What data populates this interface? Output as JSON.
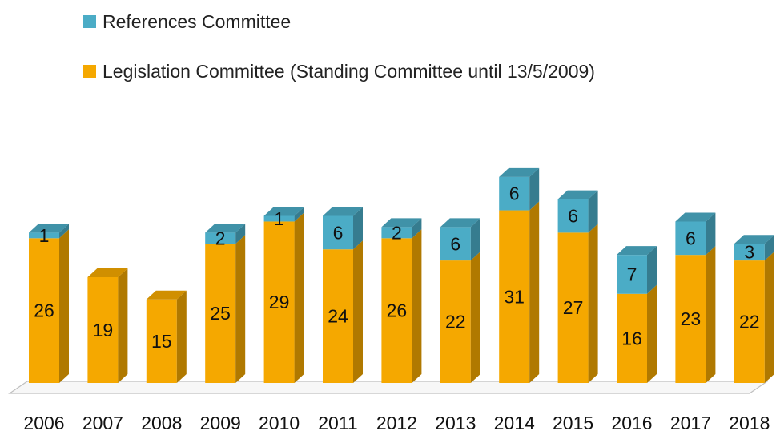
{
  "chart_data": {
    "type": "bar",
    "stacked": true,
    "three_d": true,
    "categories": [
      "2006",
      "2007",
      "2008",
      "2009",
      "2010",
      "2011",
      "2012",
      "2013",
      "2014",
      "2015",
      "2016",
      "2017",
      "2018"
    ],
    "series": [
      {
        "name": "Legislation Committee (Standing Committee until 13/5/2009)",
        "color": "#F5A800",
        "values": [
          26,
          19,
          15,
          25,
          29,
          24,
          26,
          22,
          31,
          27,
          16,
          23,
          22
        ]
      },
      {
        "name": "References Committee",
        "color": "#4BACC6",
        "values": [
          1,
          null,
          null,
          2,
          1,
          6,
          2,
          6,
          6,
          6,
          7,
          6,
          3
        ]
      }
    ],
    "legend_position": "top-left",
    "legend_order": [
      "References Committee",
      "Legislation Committee (Standing Committee until 13/5/2009)"
    ],
    "grid": false,
    "data_labels": true,
    "ylim": [
      0,
      40
    ]
  }
}
